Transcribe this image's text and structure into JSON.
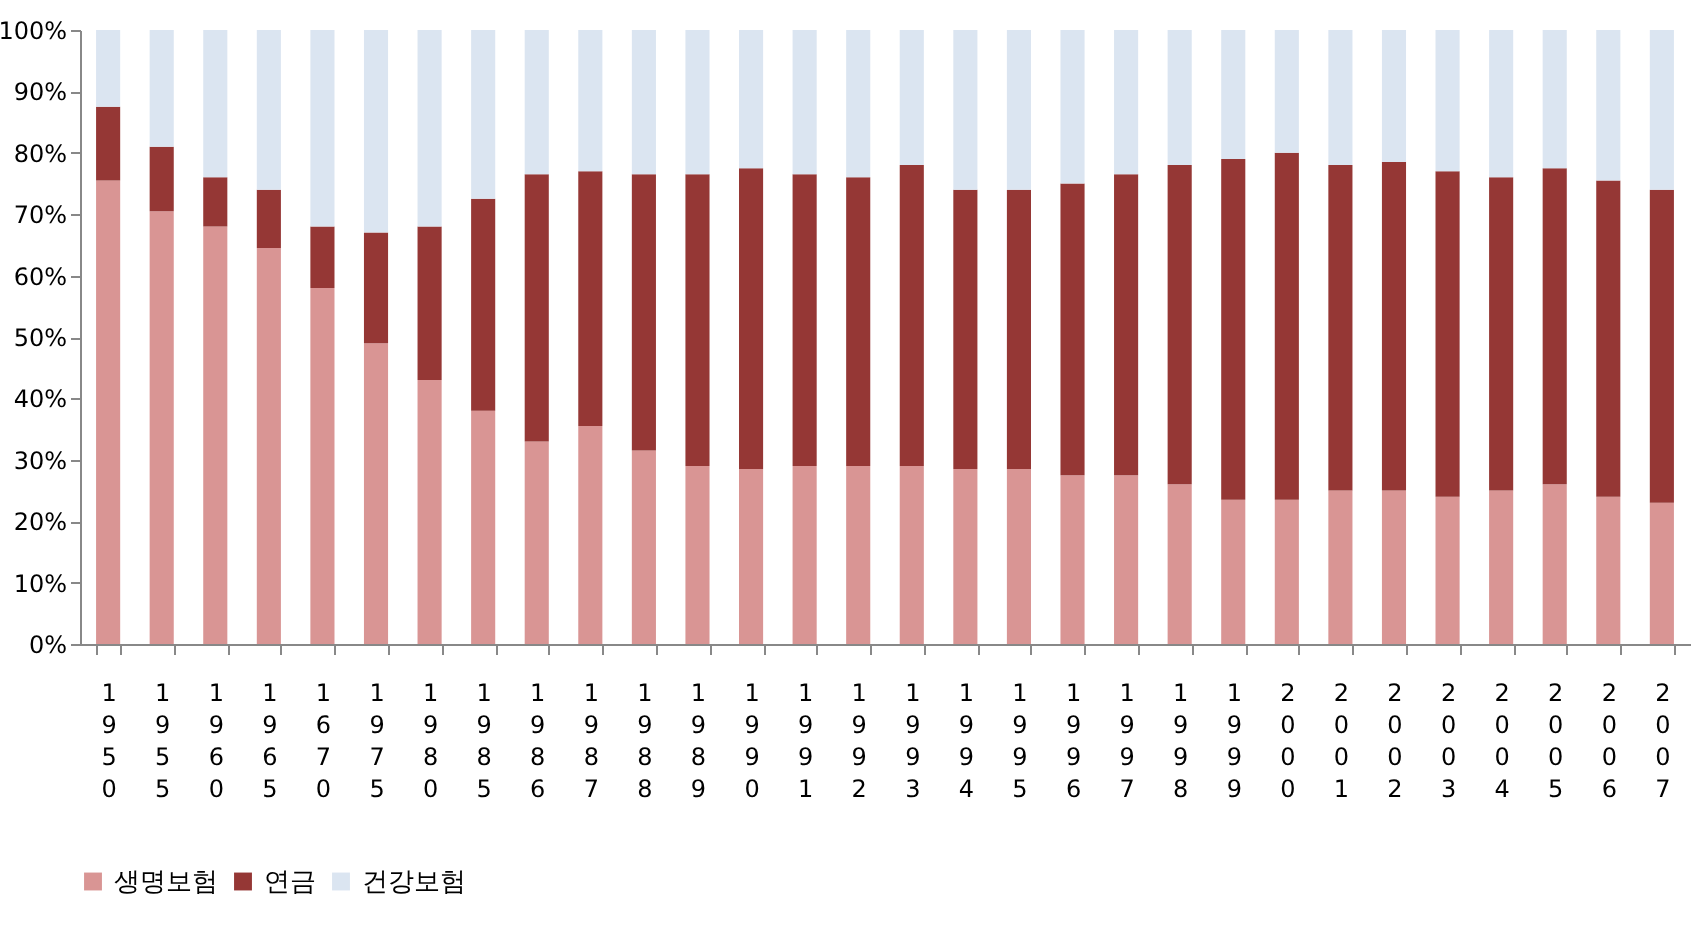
{
  "chart_data": {
    "type": "bar",
    "stacked": true,
    "categories": [
      "1950",
      "1955",
      "1960",
      "1965",
      "1670",
      "1975",
      "1980",
      "1985",
      "1986",
      "1987",
      "1988",
      "1989",
      "1990",
      "1991",
      "1992",
      "1993",
      "1994",
      "1995",
      "1996",
      "1997",
      "1998",
      "1999",
      "2000",
      "2001",
      "2002",
      "2003",
      "2004",
      "2005",
      "2006",
      "2007"
    ],
    "series": [
      {
        "name": "생명보험",
        "color": "#d99594",
        "values": [
          75.5,
          70.5,
          68,
          64.5,
          58,
          49,
          43,
          38,
          33,
          35.5,
          31.5,
          29,
          28.5,
          29,
          29,
          29,
          28.5,
          28.5,
          27.5,
          27.5,
          26,
          23.5,
          23.5,
          25,
          25,
          24,
          25,
          26,
          24,
          23
        ]
      },
      {
        "name": "연금",
        "color": "#953735",
        "values": [
          12,
          10.5,
          8,
          9.5,
          10,
          18,
          25,
          34.5,
          43.5,
          41.5,
          45,
          47.5,
          49,
          47.5,
          47,
          49,
          45.5,
          45.5,
          47.5,
          49,
          52,
          55.5,
          56.5,
          53,
          53.5,
          53,
          51,
          51.5,
          51.5,
          51
        ]
      },
      {
        "name": "건강보험",
        "color": "#dbe5f1",
        "values": [
          12.5,
          19,
          24,
          26,
          32,
          33,
          32,
          27.5,
          23.5,
          23,
          23.5,
          23.5,
          22.5,
          23.5,
          24,
          22,
          26,
          26,
          25,
          23.5,
          22,
          21,
          20,
          22,
          21.5,
          23,
          24,
          22.5,
          24.5,
          26
        ]
      }
    ],
    "ylim": [
      0,
      100
    ],
    "yticks": [
      {
        "value": 0,
        "label": "0%"
      },
      {
        "value": 10,
        "label": "10%"
      },
      {
        "value": 20,
        "label": "20%"
      },
      {
        "value": 30,
        "label": "30%"
      },
      {
        "value": 40,
        "label": "40%"
      },
      {
        "value": 50,
        "label": "50%"
      },
      {
        "value": 60,
        "label": "60%"
      },
      {
        "value": 70,
        "label": "70%"
      },
      {
        "value": 80,
        "label": "80%"
      },
      {
        "value": 90,
        "label": "90%"
      },
      {
        "value": 100,
        "label": "100%"
      }
    ],
    "grid": false,
    "legend": "bottom"
  }
}
